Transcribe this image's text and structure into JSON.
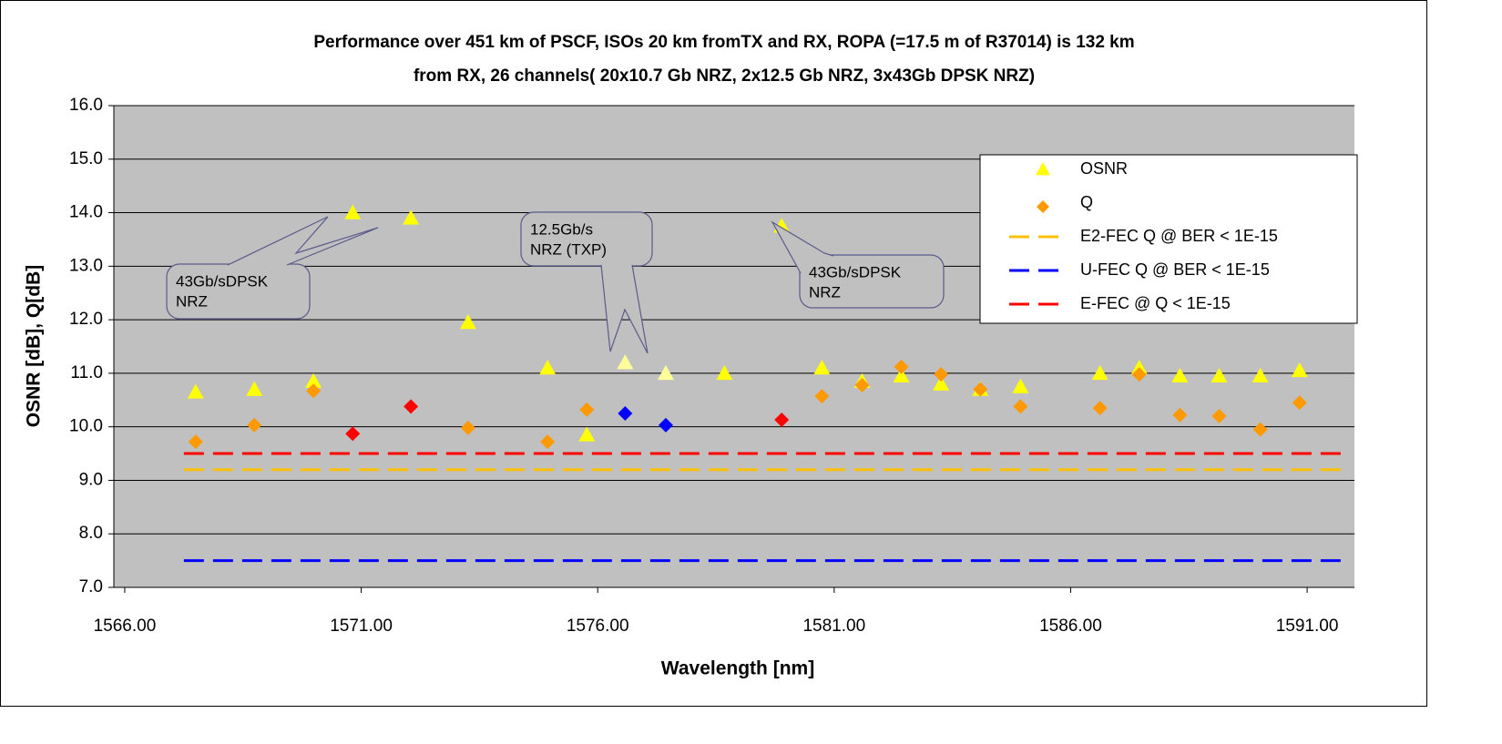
{
  "chart_data": {
    "type": "scatter",
    "title": [
      "Performance over 451 km of PSCF, ISOs 20 km fromTX and RX, ROPA (=17.5 m of R37014) is 132 km",
      "from RX, 26 channels( 20x10.7 Gb NRZ, 2x12.5 Gb NRZ, 3x43Gb DPSK NRZ)"
    ],
    "x_label": "Wavelength [nm]",
    "y_label": "OSNR [dB], Q[dB]",
    "xlim": [
      1565.77,
      1592.0
    ],
    "ylim": [
      7,
      16
    ],
    "xticks": [
      {
        "value": 1566,
        "label": "1566.00"
      },
      {
        "value": 1571,
        "label": "1571.00"
      },
      {
        "value": 1576,
        "label": "1576.00"
      },
      {
        "value": 1581,
        "label": "1581.00"
      },
      {
        "value": 1586,
        "label": "1586.00"
      },
      {
        "value": 1591,
        "label": "1591.00"
      }
    ],
    "yticks": [
      {
        "value": 7,
        "label": "7.0"
      },
      {
        "value": 8,
        "label": "8.0"
      },
      {
        "value": 9,
        "label": "9.0"
      },
      {
        "value": 10,
        "label": "10.0"
      },
      {
        "value": 11,
        "label": "11.0"
      },
      {
        "value": 12,
        "label": "12.0"
      },
      {
        "value": 13,
        "label": "13.0"
      },
      {
        "value": 14,
        "label": "14.0"
      },
      {
        "value": 15,
        "label": "15.0"
      },
      {
        "value": 16,
        "label": "16.0"
      }
    ],
    "grid": true,
    "legend": "upper right",
    "series": [
      {
        "name": "OSNR",
        "marker": "triangle",
        "color": "#FFFF00",
        "x": [
          1567.5,
          1568.74,
          1569.99,
          1570.82,
          1572.05,
          1573.26,
          1574.94,
          1575.77,
          1576.58,
          1577.44,
          1578.68,
          1579.89,
          1580.74,
          1581.59,
          1582.42,
          1583.26,
          1584.09,
          1584.94,
          1586.62,
          1587.45,
          1588.31,
          1589.14,
          1590.01,
          1590.84
        ],
        "values": [
          10.65,
          10.7,
          10.85,
          14.0,
          13.9,
          11.95,
          11.1,
          9.85,
          11.2,
          11.0,
          11.0,
          13.75,
          11.1,
          10.85,
          10.95,
          10.8,
          10.7,
          10.75,
          11.0,
          11.1,
          10.95,
          10.95,
          10.95,
          11.05
        ],
        "point_colors": [
          "#FFFF00",
          "#FFFF00",
          "#FFFF00",
          "#FFFF00",
          "#FFFF00",
          "#FFFF00",
          "#FFFF00",
          "#FFFF00",
          "#FFFF99",
          "#FFFF99",
          "#FFFF00",
          "#FFFF00",
          "#FFFF00",
          "#FFFF00",
          "#FFFF00",
          "#FFFF00",
          "#FFFF00",
          "#FFFF00",
          "#FFFF00",
          "#FFFF00",
          "#FFFF00",
          "#FFFF00",
          "#FFFF00",
          "#FFFF00"
        ]
      },
      {
        "name": "Q",
        "marker": "diamond",
        "color": "#FF9900",
        "x": [
          1567.5,
          1568.74,
          1569.99,
          1570.82,
          1572.05,
          1573.26,
          1574.94,
          1575.77,
          1576.58,
          1577.44,
          1579.89,
          1580.74,
          1581.59,
          1582.42,
          1583.26,
          1584.09,
          1584.94,
          1586.62,
          1587.45,
          1588.31,
          1589.14,
          1590.01,
          1590.84
        ],
        "values": [
          9.72,
          10.03,
          10.67,
          9.87,
          10.38,
          9.98,
          9.72,
          10.32,
          10.25,
          10.03,
          10.13,
          10.57,
          10.78,
          11.12,
          10.98,
          10.7,
          10.38,
          10.35,
          10.98,
          10.22,
          10.2,
          9.95,
          10.45
        ],
        "point_colors": [
          "#FF9900",
          "#FF9900",
          "#FF9900",
          "#FF0000",
          "#FF0000",
          "#FF9900",
          "#FF9900",
          "#FF9900",
          "#0000FF",
          "#0000FF",
          "#FF0000",
          "#FF9900",
          "#FF9900",
          "#FF9900",
          "#FF9900",
          "#FF9900",
          "#FF9900",
          "#FF9900",
          "#FF9900",
          "#FF9900",
          "#FF9900",
          "#FF9900",
          "#FF9900"
        ]
      },
      {
        "name": "E2-FEC Q @ BER < 1E-15",
        "marker": "dash",
        "color": "#FFC000",
        "x": [
          1567.25,
          1591.75
        ],
        "values": [
          9.2,
          9.2
        ]
      },
      {
        "name": "U-FEC Q @ BER < 1E-15",
        "marker": "dash",
        "color": "#0000FF",
        "x": [
          1567.25,
          1591.75
        ],
        "values": [
          7.5,
          7.5
        ]
      },
      {
        "name": "E-FEC @ Q < 1E-15",
        "marker": "dash",
        "color": "#FF0000",
        "x": [
          1567.25,
          1591.75
        ],
        "values": [
          9.5,
          9.5
        ]
      }
    ],
    "annotations": [
      {
        "lines": [
          "43Gb/sDPSK",
          "NRZ"
        ]
      },
      {
        "lines": [
          "12.5Gb/s",
          "NRZ (TXP)"
        ]
      },
      {
        "lines": [
          "43Gb/sDPSK",
          "NRZ"
        ]
      }
    ]
  }
}
